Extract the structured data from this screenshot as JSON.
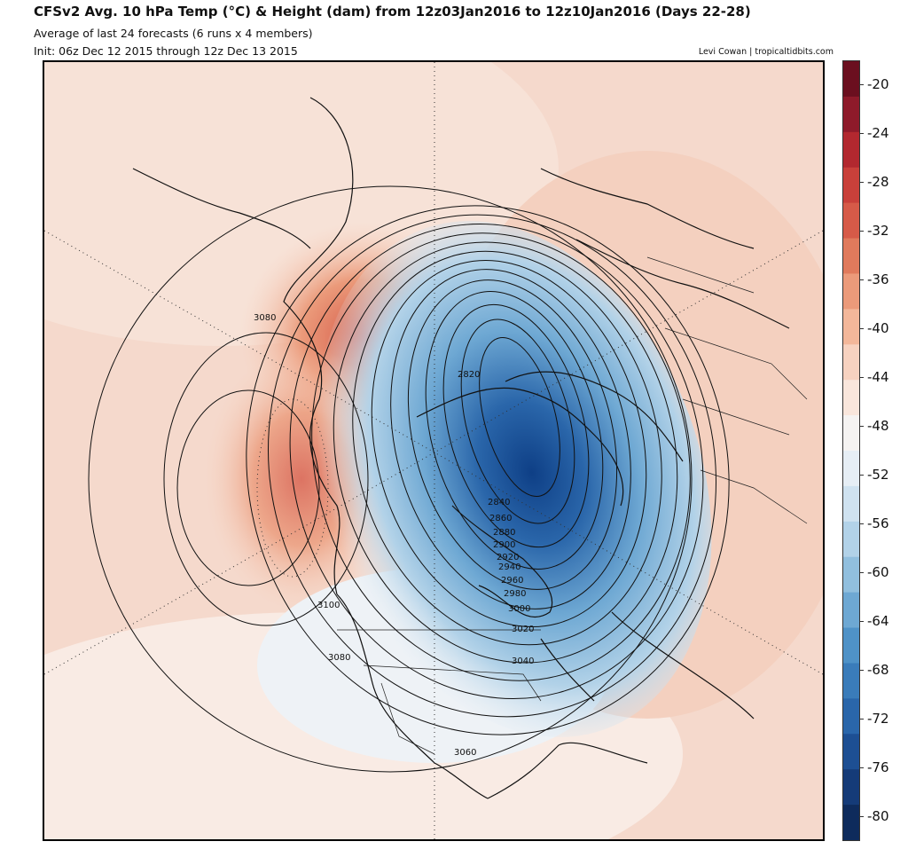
{
  "header": {
    "title": "CFSv2 Avg. 10 hPa Temp (°C) & Height (dam) from 12z03Jan2016 to 12z10Jan2016 (Days 22-28)",
    "subtitle": "Average of last 24 forecasts (6 runs x 4 members)",
    "init": "Init: 06z Dec 12 2015 through 12z Dec 13 2015",
    "credit": "Levi Cowan | tropicaltidbits.com"
  },
  "colorbar": {
    "ticks": [
      "-20",
      "-24",
      "-28",
      "-32",
      "-36",
      "-40",
      "-44",
      "-48",
      "-52",
      "-56",
      "-60",
      "-64",
      "-68",
      "-72",
      "-76",
      "-80"
    ],
    "colors": [
      "#6b0f1f",
      "#8e1a2a",
      "#b2282f",
      "#c9403a",
      "#d65a48",
      "#e07a5c",
      "#eb9a7a",
      "#f3b79a",
      "#f7d2c0",
      "#f9e6dc",
      "#f5f3f2",
      "#e6eef5",
      "#cfe2f0",
      "#b2d2e8",
      "#91bfde",
      "#6ea8d3",
      "#4f92c7",
      "#3a7cba",
      "#2a66aa",
      "#1d4f93",
      "#153b78",
      "#0e2b5c"
    ]
  },
  "map": {
    "contour_labels": [
      "2820",
      "2840",
      "2860",
      "2880",
      "2900",
      "2920",
      "2940",
      "2960",
      "2980",
      "3000",
      "3020",
      "3040",
      "3060",
      "3080",
      "3100",
      "3080"
    ]
  }
}
